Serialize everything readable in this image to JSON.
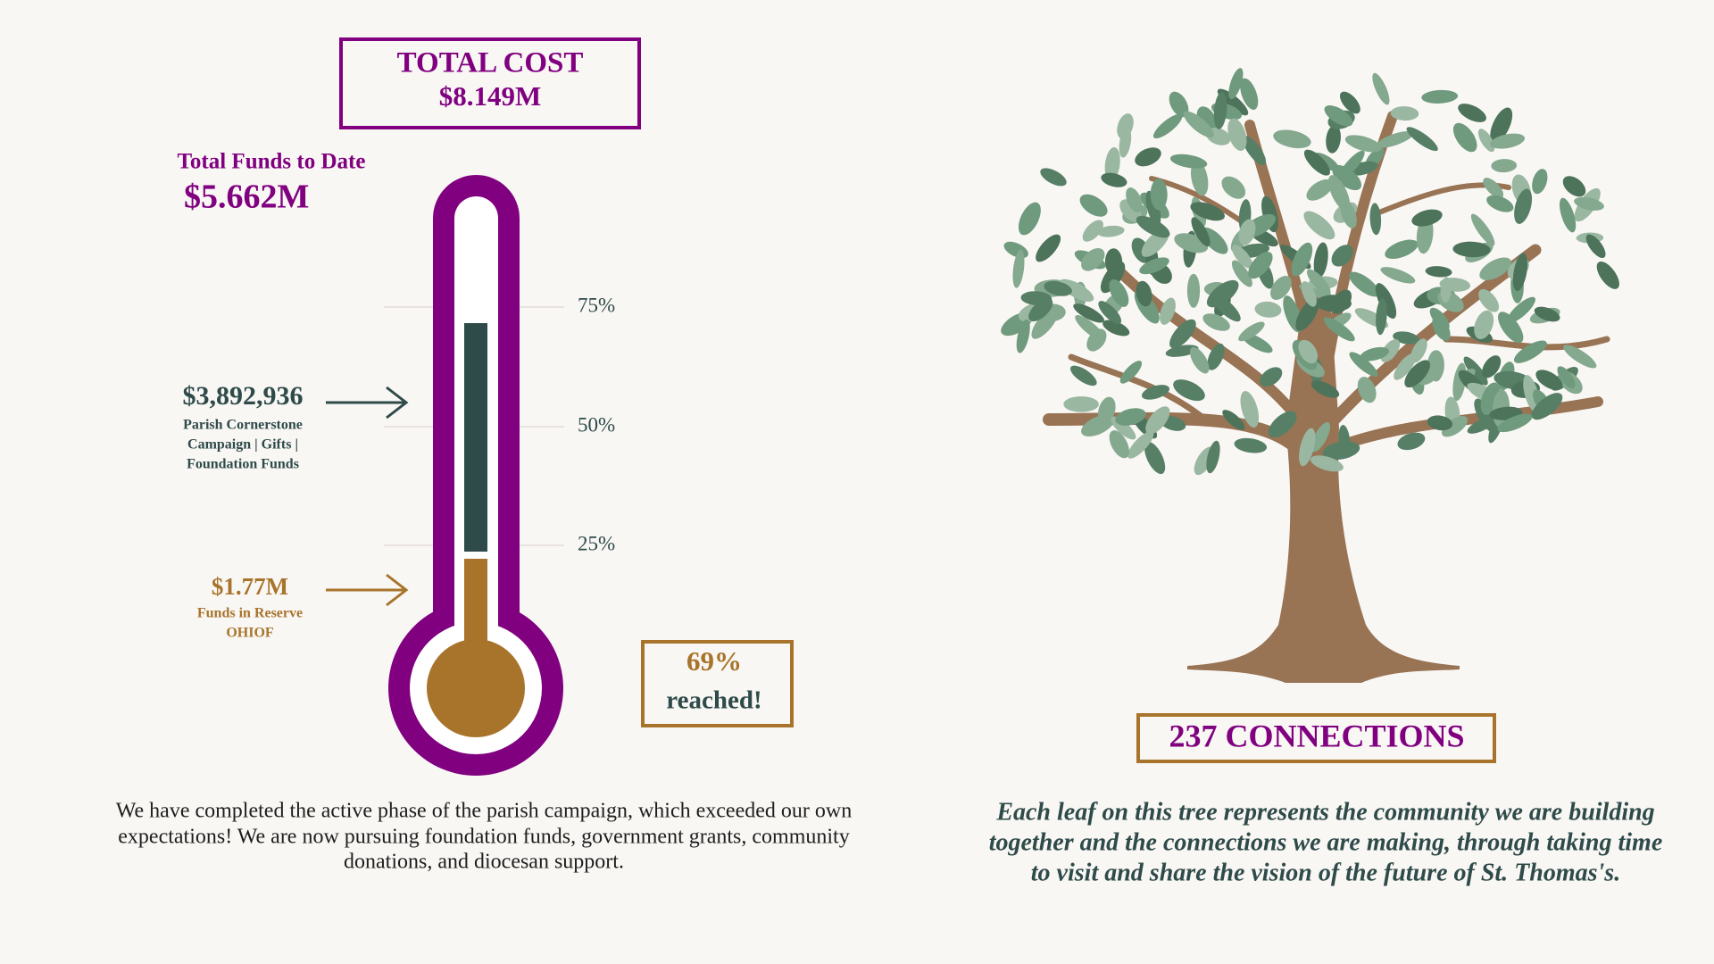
{
  "total_cost": {
    "title": "TOTAL COST",
    "amount": "$8.149M"
  },
  "funds_to_date": {
    "label": "Total Funds to Date",
    "amount": "$5.662M"
  },
  "thermometer": {
    "ticks": [
      "75%",
      "50%",
      "25%"
    ],
    "segments": [
      {
        "amount": "$3,892,936",
        "description": [
          "Parish Cornerstone",
          "Campaign | Gifts |",
          "Foundation Funds"
        ]
      },
      {
        "amount": "$1.77M",
        "description": [
          "Funds in Reserve",
          "OHIOF"
        ]
      }
    ],
    "progress": {
      "percent": "69%",
      "label": "reached!"
    }
  },
  "summary": [
    "We have completed the active phase of the parish campaign, which exceeded our own",
    "expectations! We are now pursuing foundation funds, government grants, community",
    "donations, and diocesan support."
  ],
  "tree": {
    "connections": "237 CONNECTIONS",
    "caption": [
      "Each leaf on this tree represents the community we are building",
      "together and the connections we are making, through taking time",
      "to visit and share the vision of the future of St. Thomas's."
    ]
  }
}
